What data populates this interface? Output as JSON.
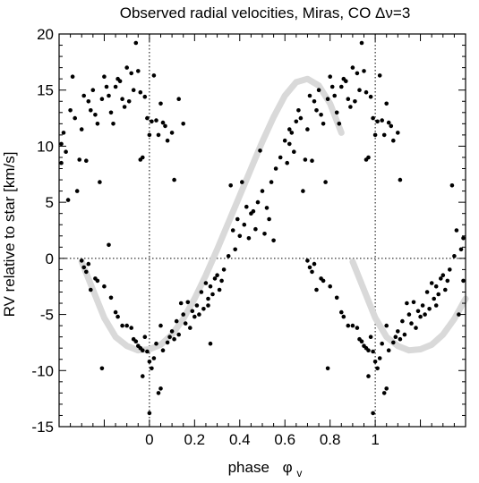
{
  "chart_data": {
    "type": "scatter",
    "title": "Observed radial velocities, Miras, CO Δν=3",
    "xlabel": "phase",
    "xlabel_symbol": "φ",
    "xlabel_subscript": "v",
    "ylabel": "RV relative to star  [km/s]",
    "xlim": [
      -0.4,
      1.4
    ],
    "ylim": [
      -15,
      20
    ],
    "x_ticks": [
      0,
      0.2,
      0.4,
      0.6,
      0.8,
      1
    ],
    "x_tick_labels": [
      "0",
      "0.2",
      "0.4",
      "0.6",
      "0.8",
      "1"
    ],
    "y_ticks": [
      -15,
      -10,
      -5,
      0,
      5,
      10,
      15,
      20
    ],
    "y_tick_labels": [
      "-15",
      "-10",
      "-5",
      "0",
      "5",
      "10",
      "15",
      "20"
    ],
    "reference_lines": {
      "vertical_x": [
        0,
        1
      ],
      "horizontal_y": [
        0
      ],
      "style": "dotted"
    },
    "fit_curve": {
      "color": "#d9d9d9",
      "segments": [
        {
          "x": [
            -0.3,
            -0.25,
            -0.2,
            -0.15,
            -0.1,
            -0.05,
            0.0,
            0.05,
            0.1,
            0.15,
            0.2,
            0.25,
            0.3,
            0.35,
            0.4,
            0.45,
            0.5,
            0.55,
            0.6,
            0.65,
            0.7,
            0.75,
            0.8,
            0.85,
            0.9,
            0.95,
            1.0,
            1.05,
            1.1,
            1.15,
            1.2,
            1.25,
            1.3,
            1.35,
            1.4
          ],
          "y": [
            -0.3,
            -2.8,
            -5.3,
            -7.0,
            -7.8,
            -8.2,
            -8.1,
            -7.7,
            -6.8,
            -5.4,
            -3.6,
            -1.5,
            0.8,
            3.2,
            5.6,
            8.0,
            10.4,
            12.6,
            14.5,
            15.7,
            16.0,
            15.4,
            13.8,
            11.2,
            -0.3,
            -2.8,
            -5.3,
            -7.0,
            -7.8,
            -8.2,
            -8.1,
            -7.7,
            -6.8,
            -5.4,
            -3.6
          ]
        }
      ]
    },
    "series": [
      {
        "marker": "dot",
        "color": "#000000",
        "points": [
          [
            -0.39,
            8.5
          ],
          [
            -0.39,
            10.2
          ],
          [
            -0.38,
            11.2
          ],
          [
            -0.37,
            9.5
          ],
          [
            -0.36,
            5.2
          ],
          [
            -0.35,
            13.2
          ],
          [
            -0.34,
            16.2
          ],
          [
            -0.33,
            12.5
          ],
          [
            -0.32,
            6.0
          ],
          [
            -0.31,
            8.8
          ],
          [
            -0.3,
            11.5
          ],
          [
            -0.29,
            14.5
          ],
          [
            -0.28,
            8.7
          ],
          [
            -0.27,
            14.0
          ],
          [
            -0.26,
            13.2
          ],
          [
            -0.25,
            15.0
          ],
          [
            -0.24,
            12.8
          ],
          [
            -0.23,
            12.0
          ],
          [
            -0.22,
            6.8
          ],
          [
            -0.21,
            14.2
          ],
          [
            -0.2,
            16.2
          ],
          [
            -0.19,
            15.3
          ],
          [
            -0.18,
            14.5
          ],
          [
            -0.17,
            13.0
          ],
          [
            -0.16,
            12.0
          ],
          [
            -0.15,
            15.3
          ],
          [
            -0.14,
            16.0
          ],
          [
            -0.13,
            15.8
          ],
          [
            -0.12,
            14.2
          ],
          [
            -0.11,
            13.5
          ],
          [
            -0.1,
            17.0
          ],
          [
            -0.09,
            14.0
          ],
          [
            -0.08,
            16.5
          ],
          [
            -0.07,
            15.0
          ],
          [
            -0.06,
            19.2
          ],
          [
            -0.05,
            16.7
          ],
          [
            -0.04,
            14.8
          ],
          [
            -0.03,
            9.0
          ],
          [
            -0.02,
            14.4
          ],
          [
            -0.01,
            12.5
          ],
          [
            0.0,
            11.0
          ],
          [
            0.01,
            12.2
          ],
          [
            0.02,
            16.3
          ],
          [
            0.03,
            12.3
          ],
          [
            0.04,
            11.0
          ],
          [
            0.05,
            13.8
          ],
          [
            0.06,
            12.1
          ],
          [
            0.07,
            11.8
          ],
          [
            0.08,
            10.5
          ],
          [
            0.1,
            11.2
          ],
          [
            0.11,
            7.0
          ],
          [
            0.13,
            14.2
          ],
          [
            0.15,
            12.0
          ],
          [
            -0.04,
            8.8
          ],
          [
            -0.3,
            -0.2
          ],
          [
            -0.29,
            -0.8
          ],
          [
            -0.28,
            -1.2
          ],
          [
            -0.27,
            -0.5
          ],
          [
            -0.26,
            -2.8
          ],
          [
            -0.24,
            -1.8
          ],
          [
            -0.23,
            -2.0
          ],
          [
            -0.21,
            -9.8
          ],
          [
            -0.2,
            -2.5
          ],
          [
            -0.18,
            1.2
          ],
          [
            -0.17,
            -3.5
          ],
          [
            -0.15,
            -4.8
          ],
          [
            -0.14,
            -5.2
          ],
          [
            -0.12,
            -6.0
          ],
          [
            -0.1,
            -6.0
          ],
          [
            -0.08,
            -6.2
          ],
          [
            -0.07,
            -7.2
          ],
          [
            -0.06,
            -7.4
          ],
          [
            -0.05,
            -7.8
          ],
          [
            -0.04,
            -8.0
          ],
          [
            -0.03,
            -8.2
          ],
          [
            -0.03,
            -10.5
          ],
          [
            -0.02,
            -7.0
          ],
          [
            -0.01,
            -8.3
          ],
          [
            0.0,
            -9.2
          ],
          [
            0.0,
            -13.8
          ],
          [
            0.01,
            -9.8
          ],
          [
            0.02,
            -8.9
          ],
          [
            0.03,
            -7.6
          ],
          [
            0.04,
            -12.0
          ],
          [
            0.05,
            -11.6
          ],
          [
            0.05,
            -6.0
          ],
          [
            0.06,
            -8.2
          ],
          [
            0.08,
            -7.5
          ],
          [
            0.09,
            -7.0
          ],
          [
            0.1,
            -6.5
          ],
          [
            0.11,
            -7.2
          ],
          [
            0.12,
            -5.6
          ],
          [
            0.13,
            -6.8
          ],
          [
            0.14,
            -4.0
          ],
          [
            0.15,
            -5.0
          ],
          [
            0.16,
            -5.8
          ],
          [
            0.17,
            -3.9
          ],
          [
            0.18,
            -6.2
          ],
          [
            0.19,
            -4.7
          ],
          [
            0.2,
            -5.2
          ],
          [
            0.21,
            -4.2
          ],
          [
            0.22,
            -5.0
          ],
          [
            0.23,
            -3.0
          ],
          [
            0.24,
            -4.5
          ],
          [
            0.25,
            -2.2
          ],
          [
            0.26,
            -3.6
          ],
          [
            0.27,
            -2.5
          ],
          [
            0.28,
            -3.2
          ],
          [
            0.29,
            -1.8
          ],
          [
            0.3,
            -1.5
          ],
          [
            0.31,
            -2.8
          ],
          [
            0.32,
            -2.0
          ],
          [
            0.33,
            -1.0
          ],
          [
            0.35,
            0.2
          ],
          [
            0.38,
            0.8
          ],
          [
            0.4,
            2.0
          ],
          [
            0.42,
            3.0
          ],
          [
            0.44,
            1.8
          ],
          [
            0.46,
            4.2
          ],
          [
            0.48,
            5.0
          ],
          [
            0.5,
            6.0
          ],
          [
            0.52,
            4.5
          ],
          [
            0.53,
            3.5
          ],
          [
            0.54,
            6.8
          ],
          [
            0.56,
            8.0
          ],
          [
            0.58,
            9.0
          ],
          [
            0.6,
            10.5
          ],
          [
            0.62,
            11.5
          ],
          [
            0.65,
            12.2
          ],
          [
            0.27,
            -7.6
          ],
          [
            0.26,
            -4.2
          ],
          [
            0.36,
            6.5
          ],
          [
            0.37,
            2.5
          ],
          [
            0.39,
            3.5
          ],
          [
            0.41,
            6.8
          ],
          [
            0.43,
            4.6
          ],
          [
            0.45,
            4.0
          ],
          [
            0.47,
            2.6
          ],
          [
            0.49,
            9.6
          ],
          [
            0.51,
            2.2
          ],
          [
            0.55,
            1.6
          ],
          [
            0.61,
            8.5
          ],
          [
            0.62,
            10.2
          ],
          [
            0.63,
            11.2
          ],
          [
            0.64,
            9.5
          ],
          [
            0.66,
            13.2
          ],
          [
            0.67,
            12.5
          ],
          [
            0.68,
            6.0
          ],
          [
            0.69,
            8.8
          ],
          [
            0.7,
            11.5
          ],
          [
            0.71,
            14.5
          ],
          [
            0.72,
            8.7
          ],
          [
            0.73,
            14.0
          ],
          [
            0.74,
            13.2
          ],
          [
            0.75,
            15.0
          ],
          [
            0.76,
            12.8
          ],
          [
            0.77,
            12.0
          ],
          [
            0.78,
            6.8
          ],
          [
            0.79,
            14.2
          ],
          [
            0.8,
            16.2
          ],
          [
            0.81,
            15.3
          ],
          [
            0.82,
            14.5
          ],
          [
            0.83,
            13.0
          ],
          [
            0.84,
            12.0
          ],
          [
            0.85,
            15.3
          ],
          [
            0.86,
            16.0
          ],
          [
            0.87,
            15.8
          ],
          [
            0.88,
            14.2
          ],
          [
            0.89,
            13.5
          ],
          [
            0.9,
            17.0
          ],
          [
            0.91,
            14.0
          ],
          [
            0.92,
            16.5
          ],
          [
            0.93,
            15.0
          ],
          [
            0.94,
            19.2
          ],
          [
            0.95,
            16.7
          ],
          [
            0.96,
            14.8
          ],
          [
            0.97,
            9.0
          ],
          [
            0.98,
            14.4
          ],
          [
            0.99,
            12.5
          ],
          [
            1.0,
            11.0
          ],
          [
            1.01,
            12.2
          ],
          [
            1.02,
            16.3
          ],
          [
            1.03,
            12.3
          ],
          [
            1.04,
            11.0
          ],
          [
            1.05,
            13.8
          ],
          [
            1.06,
            12.1
          ],
          [
            1.07,
            11.8
          ],
          [
            1.08,
            10.5
          ],
          [
            1.1,
            11.2
          ],
          [
            1.11,
            7.0
          ],
          [
            0.96,
            8.8
          ],
          [
            0.7,
            -0.2
          ],
          [
            0.71,
            -0.8
          ],
          [
            0.72,
            -1.2
          ],
          [
            0.73,
            -0.5
          ],
          [
            0.74,
            -2.8
          ],
          [
            0.76,
            -1.8
          ],
          [
            0.77,
            -2.0
          ],
          [
            0.79,
            -9.8
          ],
          [
            0.8,
            -2.5
          ],
          [
            0.83,
            -3.5
          ],
          [
            0.85,
            -4.8
          ],
          [
            0.86,
            -5.2
          ],
          [
            0.88,
            -6.0
          ],
          [
            0.9,
            -6.0
          ],
          [
            0.92,
            -6.2
          ],
          [
            0.93,
            -7.2
          ],
          [
            0.94,
            -7.4
          ],
          [
            0.95,
            -7.8
          ],
          [
            0.96,
            -8.0
          ],
          [
            0.97,
            -8.2
          ],
          [
            0.97,
            -10.5
          ],
          [
            0.98,
            -7.0
          ],
          [
            0.99,
            -8.3
          ],
          [
            1.0,
            -9.2
          ],
          [
            0.99,
            -13.8
          ],
          [
            1.01,
            -9.8
          ],
          [
            1.02,
            -8.9
          ],
          [
            1.03,
            -7.6
          ],
          [
            1.04,
            -12.0
          ],
          [
            1.05,
            -11.6
          ],
          [
            1.05,
            -6.0
          ],
          [
            1.06,
            -8.2
          ],
          [
            1.08,
            -7.5
          ],
          [
            1.09,
            -7.0
          ],
          [
            1.1,
            -6.5
          ],
          [
            1.11,
            -7.2
          ],
          [
            1.12,
            -5.6
          ],
          [
            1.13,
            -6.8
          ],
          [
            1.14,
            -4.0
          ],
          [
            1.15,
            -5.0
          ],
          [
            1.16,
            -5.8
          ],
          [
            1.17,
            -3.9
          ],
          [
            1.18,
            -6.2
          ],
          [
            1.19,
            -4.7
          ],
          [
            1.2,
            -5.2
          ],
          [
            1.21,
            -4.2
          ],
          [
            1.22,
            -5.0
          ],
          [
            1.23,
            -3.0
          ],
          [
            1.24,
            -4.5
          ],
          [
            1.25,
            -2.2
          ],
          [
            1.26,
            -3.6
          ],
          [
            1.27,
            -2.5
          ],
          [
            1.28,
            -3.2
          ],
          [
            1.29,
            -1.8
          ],
          [
            1.3,
            -1.5
          ],
          [
            1.31,
            -2.8
          ],
          [
            1.32,
            -2.0
          ],
          [
            1.33,
            -1.0
          ],
          [
            1.35,
            0.2
          ],
          [
            1.37,
            -5.0
          ],
          [
            1.38,
            0.8
          ],
          [
            1.39,
            1.8
          ],
          [
            1.34,
            6.5
          ],
          [
            1.36,
            2.5
          ],
          [
            1.27,
            -4.2
          ],
          [
            1.39,
            -2.0
          ]
        ]
      }
    ],
    "grid": false,
    "legend": "none"
  }
}
